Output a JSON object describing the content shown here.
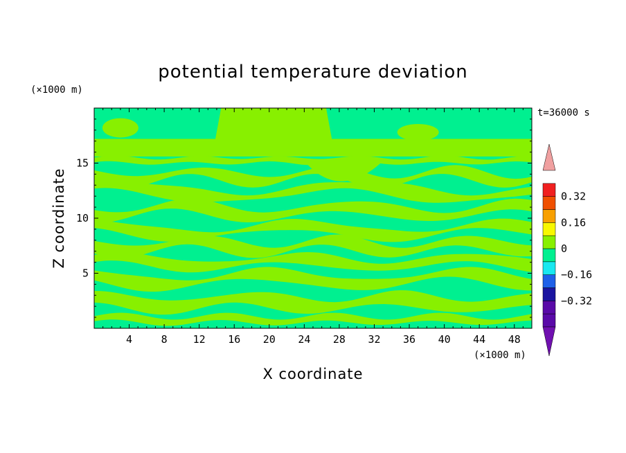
{
  "chart_data": {
    "type": "heatmap",
    "title": "potential temperature deviation",
    "xlabel": "X coordinate",
    "ylabel": "Z coordinate",
    "x_unit": "(×1000 m)",
    "y_unit": "(×1000 m)",
    "time_label": "t=36000 s",
    "xlim": [
      0,
      50
    ],
    "ylim": [
      0,
      20
    ],
    "x_ticks": [
      4,
      8,
      12,
      16,
      20,
      24,
      28,
      32,
      36,
      40,
      44,
      48
    ],
    "y_ticks": [
      5,
      10,
      15
    ],
    "colorbar": {
      "levels": [
        -0.48,
        -0.4,
        -0.32,
        -0.24,
        -0.16,
        -0.08,
        0,
        0.08,
        0.16,
        0.24,
        0.32,
        0.4,
        0.48
      ],
      "colors": [
        "#5a0aa8",
        "#1a14a0",
        "#1e60e8",
        "#18e8f0",
        "#00f090",
        "#88f000",
        "#f8f800",
        "#f8a000",
        "#f05000",
        "#f02020"
      ],
      "under_color": "#7010b0",
      "over_color": "#f0a0a0",
      "labels": [
        "0.32",
        "0.16",
        "0",
        "-0.16",
        "-0.32"
      ]
    },
    "field": {
      "dominant_colors": [
        "#00f090",
        "#88f000"
      ],
      "description_levels": [
        -0.08,
        0,
        0.08
      ]
    }
  }
}
